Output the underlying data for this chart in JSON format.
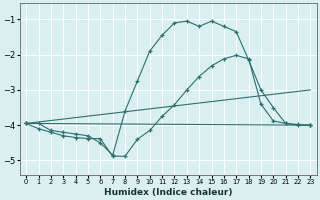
{
  "xlabel": "Humidex (Indice chaleur)",
  "ylabel": "",
  "bg_color": "#daf0f0",
  "grid_color": "#ffffff",
  "line_color": "#2d6e6e",
  "xlim": [
    -0.5,
    23.5
  ],
  "ylim": [
    -5.4,
    -0.55
  ],
  "yticks": [
    -5,
    -4,
    -3,
    -2,
    -1
  ],
  "xticks": [
    0,
    1,
    2,
    3,
    4,
    5,
    6,
    7,
    8,
    9,
    10,
    11,
    12,
    13,
    14,
    15,
    16,
    17,
    18,
    19,
    20,
    21,
    22,
    23
  ],
  "line1_x": [
    0,
    1,
    2,
    3,
    4,
    5,
    6,
    7,
    8,
    9,
    10,
    11,
    12,
    13,
    14,
    15,
    16,
    17,
    18,
    19,
    20,
    21,
    22,
    23
  ],
  "line1_y": [
    -3.95,
    -3.95,
    -4.15,
    -4.2,
    -4.25,
    -4.3,
    -4.5,
    -4.85,
    -3.6,
    -2.75,
    -1.9,
    -1.45,
    -1.1,
    -1.05,
    -1.2,
    -1.05,
    -1.2,
    -1.35,
    -2.15,
    -3.0,
    -3.5,
    -3.95,
    -4.0,
    -4.0
  ],
  "line2_x": [
    0,
    1,
    2,
    3,
    4,
    5,
    6,
    7,
    8,
    9,
    10,
    11,
    12,
    13,
    14,
    15,
    16,
    17,
    18,
    19,
    20,
    21,
    22,
    23
  ],
  "line2_y": [
    -3.95,
    -4.1,
    -4.2,
    -4.3,
    -4.35,
    -4.38,
    -4.38,
    -4.88,
    -4.88,
    -4.4,
    -4.15,
    -3.75,
    -3.42,
    -3.0,
    -2.62,
    -2.32,
    -2.12,
    -2.02,
    -2.12,
    -3.4,
    -3.88,
    -3.95,
    -3.98,
    -4.0
  ],
  "line3_x": [
    0,
    23
  ],
  "line3_y": [
    -3.95,
    -4.0
  ],
  "line4_x": [
    0,
    23
  ],
  "line4_y": [
    -3.95,
    -3.0
  ]
}
